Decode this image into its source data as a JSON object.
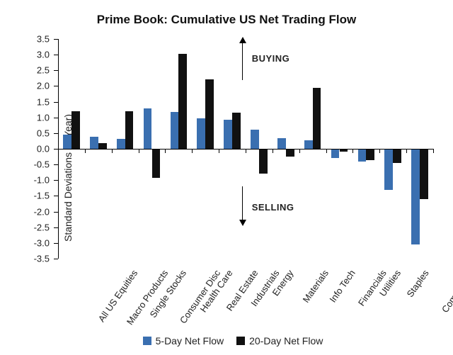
{
  "chart": {
    "type": "bar",
    "title": "Prime Book: Cumulative US Net Trading Flow",
    "title_fontsize": 17,
    "ylabel": "Standard Deviations (1-Year)",
    "label_fontsize": 14,
    "tick_fontsize": 13,
    "xlabel_fontsize": 13,
    "legend_fontsize": 14,
    "background_color": "#ffffff",
    "axis_color": "#000000",
    "text_color": "#222222",
    "ylim": [
      -3.5,
      3.5
    ],
    "yticks": [
      -3.5,
      -3.0,
      -2.5,
      -2.0,
      -1.5,
      -1.0,
      -0.5,
      0.0,
      0.5,
      1.0,
      1.5,
      2.0,
      2.5,
      3.0,
      3.5
    ],
    "ytick_labels": [
      "-3.5",
      "-3.0",
      "-2.5",
      "-2.0",
      "-1.5",
      "-1.0",
      "-0.5",
      "0.0",
      "0.5",
      "1.0",
      "1.5",
      "2.0",
      "2.5",
      "3.0",
      "3.5"
    ],
    "categories": [
      "All US Equities",
      "Macro Products",
      "Single Stocks",
      "Consumer Disc",
      "Health Care",
      "Real Estate",
      "Industrials",
      "Energy",
      "Materials",
      "Info Tech",
      "Financials",
      "Utilities",
      "Staples",
      "Comm Svcs"
    ],
    "series": [
      {
        "name": "5-Day Net Flow",
        "color": "#3a6fb0",
        "values": [
          0.45,
          0.38,
          0.32,
          1.28,
          1.18,
          0.98,
          0.92,
          0.62,
          0.35,
          0.27,
          -0.3,
          -0.4,
          -1.3,
          -3.05
        ]
      },
      {
        "name": "20-Day Net Flow",
        "color": "#111111",
        "values": [
          1.2,
          0.17,
          1.2,
          -0.92,
          3.02,
          2.22,
          1.15,
          -0.78,
          -0.25,
          1.95,
          -0.1,
          -0.35,
          -0.45,
          -1.6
        ]
      }
    ],
    "bar_group_width": 0.62,
    "annotations": {
      "buying_label": "BUYING",
      "selling_label": "SELLING",
      "annot_fontsize": 13
    }
  }
}
